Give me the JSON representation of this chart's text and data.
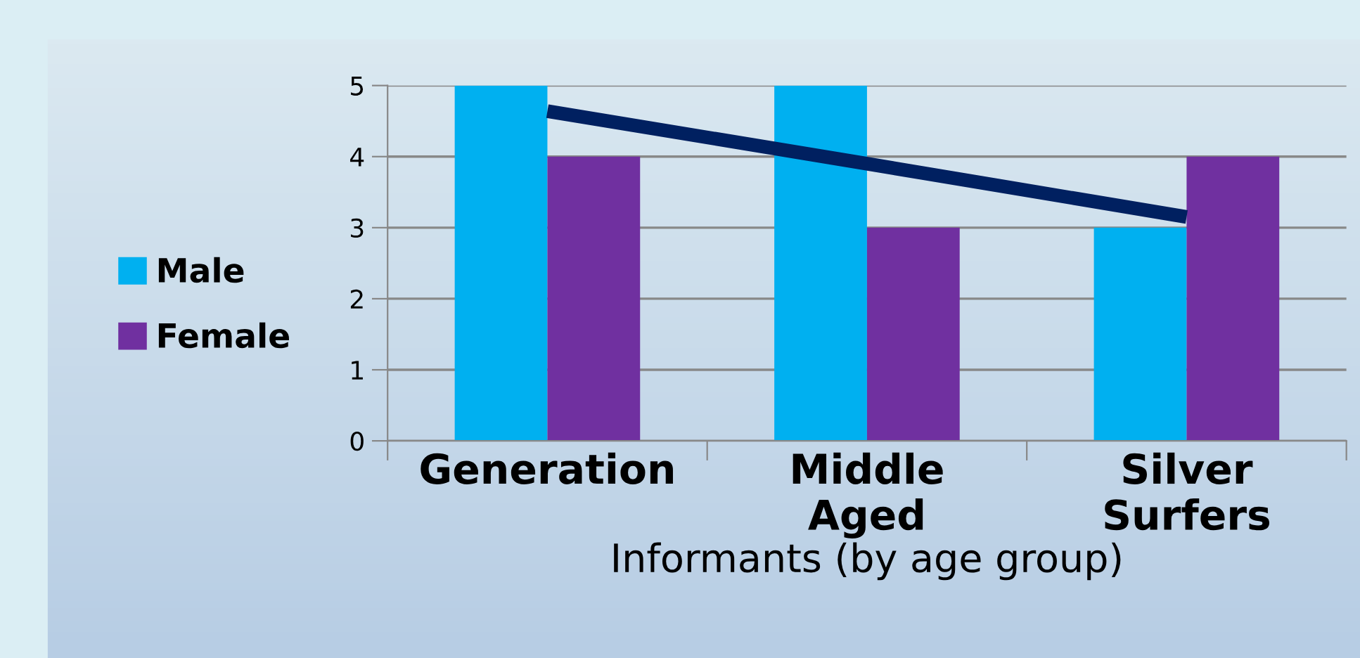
{
  "chart_data": {
    "type": "bar",
    "xlabel": "Informants (by age group)",
    "categories": [
      "Generation",
      "Middle\nAged",
      "Silver\nSurfers"
    ],
    "series": [
      {
        "name": "Male",
        "color": "#00b0f0",
        "values": [
          5,
          5,
          3
        ]
      },
      {
        "name": "Female",
        "color": "#7030a0",
        "values": [
          4,
          3,
          4
        ]
      },
      {
        "type": "line",
        "color": "#002060",
        "values": [
          4.64,
          3.9,
          3.15
        ]
      }
    ],
    "ylim": [
      0,
      5
    ],
    "yticks": [
      0,
      1,
      2,
      3,
      4,
      5
    ],
    "grid": "y",
    "legend": "left"
  }
}
